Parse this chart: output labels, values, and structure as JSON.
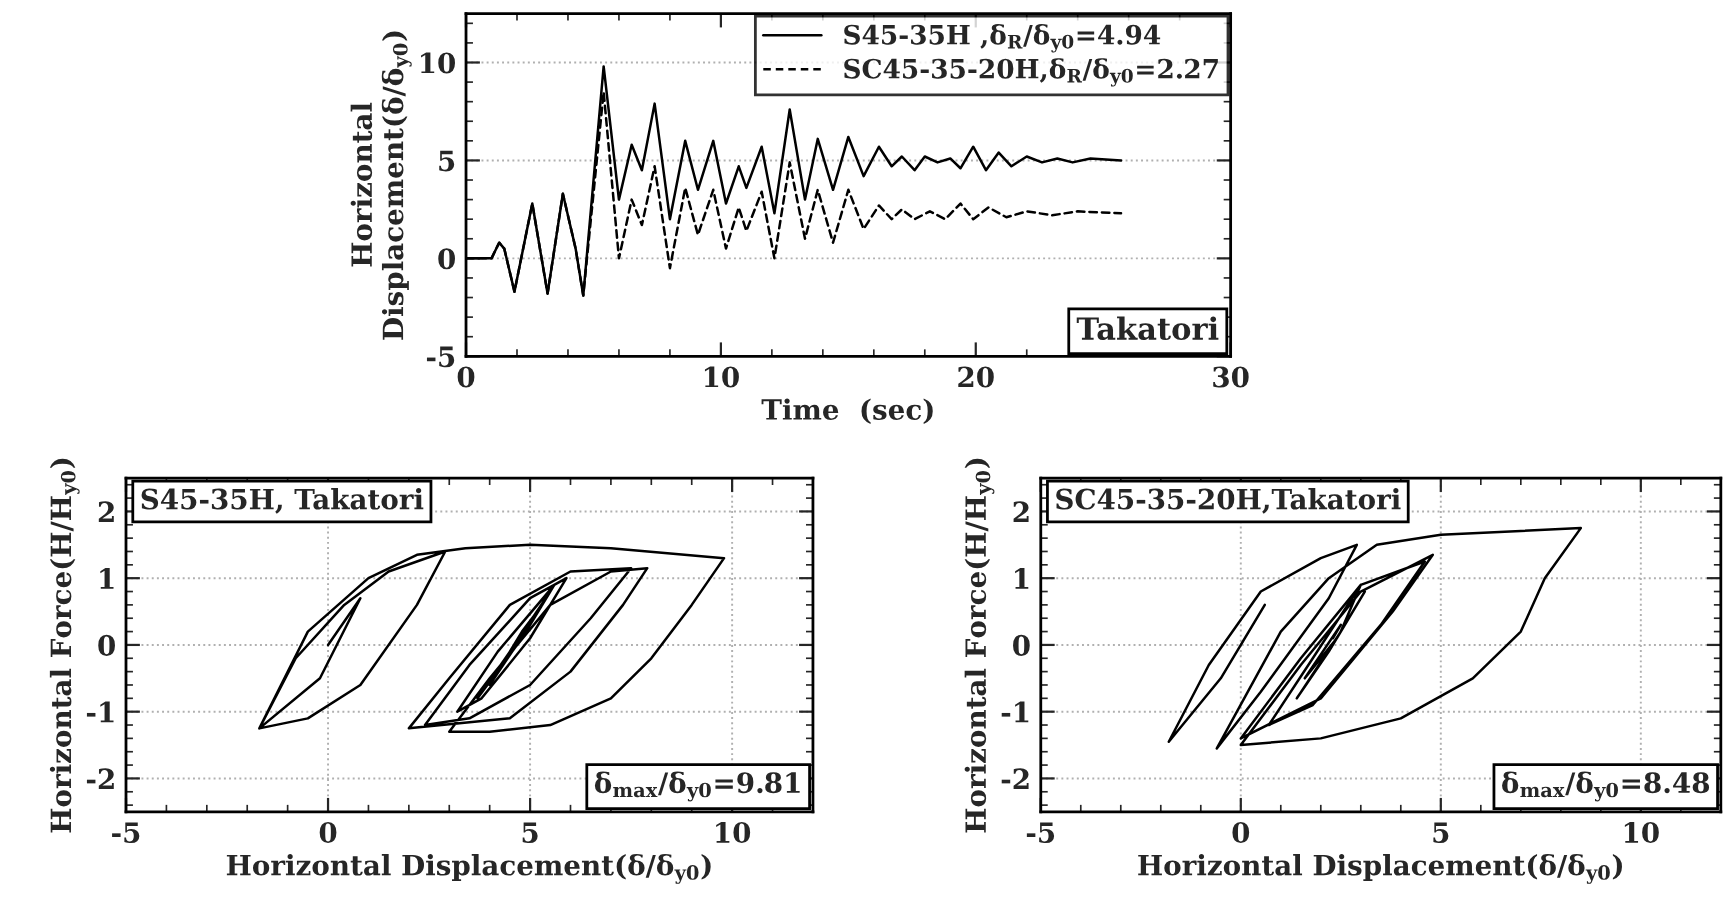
{
  "chart_data": [
    {
      "type": "line",
      "xlabel": "Time  (sec)",
      "ylabel": "Horizontal\nDisplacement(δ/δ$_{y0}$)",
      "xlim": [
        0,
        30
      ],
      "ylim": [
        -5,
        12.5
      ],
      "xticks": [
        0,
        10,
        20,
        30
      ],
      "yticks": [
        -5,
        0,
        5,
        10
      ],
      "grid": "y",
      "legend": "top right",
      "annotations": [
        "Takatori"
      ],
      "series": [
        {
          "name": "S45-35H ,δ$_{R}$/δ$_{y0}$=4.94",
          "color": "#000000",
          "line_style": "solid",
          "x": [
            0,
            1.0,
            1.3,
            1.5,
            1.9,
            2.6,
            3.2,
            3.8,
            4.3,
            4.6,
            5.4,
            6.0,
            6.5,
            6.9,
            7.4,
            8.0,
            8.6,
            9.1,
            9.7,
            10.2,
            10.7,
            11.0,
            11.6,
            12.1,
            12.7,
            13.3,
            13.8,
            14.4,
            15.0,
            15.6,
            16.2,
            16.7,
            17.1,
            17.6,
            18.0,
            18.5,
            19.0,
            19.4,
            19.9,
            20.4,
            20.9,
            21.4,
            22.0,
            22.6,
            23.2,
            23.8,
            24.5,
            25.7
          ],
          "values": [
            0,
            0,
            0.8,
            0.5,
            -1.7,
            2.8,
            -1.8,
            3.3,
            0.5,
            -1.9,
            9.8,
            3.0,
            5.8,
            4.5,
            7.9,
            2.0,
            6.0,
            3.5,
            6.0,
            2.8,
            4.7,
            3.6,
            5.7,
            2.3,
            7.6,
            3.0,
            6.1,
            3.5,
            6.2,
            4.2,
            5.7,
            4.7,
            5.2,
            4.5,
            5.2,
            4.9,
            5.1,
            4.6,
            5.7,
            4.5,
            5.4,
            4.7,
            5.2,
            4.9,
            5.1,
            4.9,
            5.1,
            5.0
          ]
        },
        {
          "name": "SC45-35-20H,δ$_{R}$/δ$_{y0}$=2.27",
          "color": "#000000",
          "line_style": "dashed",
          "x": [
            0,
            1.0,
            1.3,
            1.5,
            1.9,
            2.6,
            3.2,
            3.8,
            4.3,
            4.6,
            5.4,
            6.0,
            6.5,
            6.9,
            7.4,
            8.0,
            8.6,
            9.1,
            9.7,
            10.2,
            10.7,
            11.0,
            11.6,
            12.1,
            12.7,
            13.3,
            13.8,
            14.4,
            15.0,
            15.6,
            16.2,
            16.7,
            17.1,
            17.6,
            18.2,
            18.8,
            19.4,
            19.9,
            20.5,
            21.2,
            22.0,
            23.0,
            24.0,
            25.7
          ],
          "values": [
            0,
            0,
            0.8,
            0.5,
            -1.7,
            2.8,
            -1.8,
            3.3,
            0.5,
            -1.9,
            8.5,
            0.0,
            3.0,
            1.7,
            4.7,
            -0.5,
            3.6,
            1.2,
            3.5,
            0.5,
            2.6,
            1.4,
            3.4,
            0.0,
            4.9,
            1.0,
            3.5,
            0.8,
            3.5,
            1.5,
            2.7,
            2.0,
            2.5,
            2.0,
            2.4,
            2.0,
            2.8,
            2.0,
            2.6,
            2.1,
            2.4,
            2.2,
            2.4,
            2.3
          ]
        }
      ]
    },
    {
      "type": "line",
      "xlabel": "Horizontal Displacement(δ/δ$_{y0}$)",
      "ylabel": "Horizontal Force(H/H$_{y0}$)",
      "xlim": [
        -5,
        12
      ],
      "ylim": [
        -2.5,
        2.5
      ],
      "xticks": [
        -5,
        0,
        5,
        10
      ],
      "yticks": [
        -2,
        -1,
        0,
        1,
        2
      ],
      "grid": true,
      "annotations": [
        "S45-35H, Takatori",
        "δ$_{max}$/δ$_{y0}$=9.81"
      ],
      "series": [
        {
          "color": "#000000",
          "line_style": "solid",
          "x": [
            0,
            0.8,
            -0.2,
            -1.7,
            -0.8,
            0.4,
            1.5,
            2.9,
            2.2,
            0.8,
            -0.5,
            -1.7,
            -0.5,
            1.0,
            2.2,
            3.4,
            5,
            7,
            9.8,
            9.0,
            8.0,
            7.0,
            5.5,
            4,
            3.0,
            4.0,
            5.5,
            7.0,
            7.9,
            7.3,
            6.0,
            4.5,
            2.0,
            3.0,
            4.5,
            6.0,
            7.5,
            6.5,
            5.0,
            3.5,
            2.4,
            3.5,
            5.0,
            5.9,
            5.0,
            3.8,
            3.2,
            4.2,
            5.6,
            4.8,
            3.7,
            4.5,
            5.5,
            5.0,
            4.0,
            4.8,
            5.3,
            4.6,
            5.0
          ],
          "values": [
            0,
            0.7,
            -0.5,
            -1.25,
            -0.2,
            0.6,
            1.1,
            1.4,
            0.6,
            -0.6,
            -1.1,
            -1.25,
            0.2,
            1.0,
            1.35,
            1.45,
            1.5,
            1.45,
            1.3,
            0.6,
            -0.2,
            -0.8,
            -1.2,
            -1.3,
            -1.3,
            -0.5,
            0.6,
            1.1,
            1.15,
            0.6,
            -0.4,
            -1.1,
            -1.25,
            -0.5,
            0.6,
            1.1,
            1.15,
            0.4,
            -0.6,
            -1.1,
            -1.2,
            -0.3,
            0.7,
            1.0,
            0.1,
            -0.8,
            -1.0,
            -0.1,
            0.9,
            0.1,
            -0.8,
            -0.1,
            0.8,
            0.3,
            -0.6,
            0.2,
            0.6,
            0.0,
            0.3
          ]
        }
      ]
    },
    {
      "type": "line",
      "xlabel": "Horizontal Displacement(δ/δ$_{y0}$)",
      "ylabel": "Horizontal Force(H/H$_{y0}$)",
      "xlim": [
        -5,
        12
      ],
      "ylim": [
        -2.5,
        2.5
      ],
      "xticks": [
        -5,
        0,
        5,
        10
      ],
      "yticks": [
        -2,
        -1,
        0,
        1,
        2
      ],
      "grid": true,
      "annotations": [
        "SC45-35-20H,Takatori",
        "δ$_{max}$/δ$_{y0}$=8.48"
      ],
      "series": [
        {
          "color": "#000000",
          "line_style": "solid",
          "x": [
            0,
            0.6,
            -0.5,
            -1.8,
            -0.8,
            0.5,
            2.0,
            2.9,
            2.2,
            0.5,
            -0.6,
            1.0,
            2.2,
            3.4,
            5,
            8.5,
            7.6,
            7.0,
            5.8,
            4.0,
            2.0,
            0,
            1.5,
            3.0,
            4.8,
            3.8,
            2.0,
            0,
            1.5,
            3.0,
            4.6,
            3.5,
            1.8,
            0.7,
            1.8,
            3.0,
            2.5,
            1.4,
            2.2,
            3.1,
            2.4,
            1.6,
            2.5,
            2.3
          ],
          "values": [
            0,
            0.6,
            -0.5,
            -1.45,
            -0.3,
            0.8,
            1.3,
            1.5,
            0.7,
            -0.7,
            -1.55,
            0.2,
            1.0,
            1.5,
            1.65,
            1.75,
            1.0,
            0.2,
            -0.5,
            -1.1,
            -1.4,
            -1.5,
            -0.3,
            0.8,
            1.35,
            0.5,
            -0.8,
            -1.4,
            -0.2,
            0.9,
            1.25,
            0.3,
            -0.9,
            -1.2,
            -0.2,
            0.9,
            0.2,
            -0.8,
            -0.1,
            0.8,
            0.1,
            -0.5,
            0.3,
            0.1
          ]
        }
      ]
    }
  ]
}
